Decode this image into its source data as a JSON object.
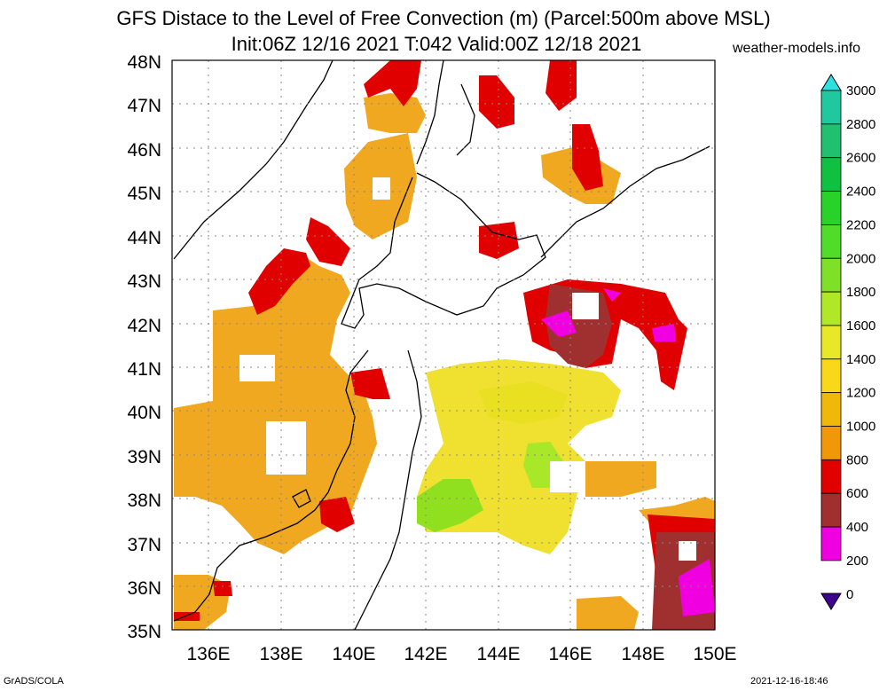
{
  "title_line1": "GFS Distace to the Level of Free Convection (m) (Parcel:500m above MSL)",
  "title_line2": "Init:06Z 12/16 2021 T:042 Valid:00Z 12/18 2021",
  "site": "weather-models.info",
  "footer_left": "GrADS/COLA",
  "footer_right": "2021-12-16-18:46",
  "lat_labels": [
    "48N",
    "47N",
    "46N",
    "45N",
    "44N",
    "43N",
    "42N",
    "41N",
    "40N",
    "39N",
    "38N",
    "37N",
    "36N",
    "35N"
  ],
  "lon_labels": [
    "136E",
    "138E",
    "140E",
    "142E",
    "144E",
    "146E",
    "148E",
    "150E"
  ],
  "colorbar": {
    "levels": [
      "3000",
      "2800",
      "2600",
      "2400",
      "2200",
      "2000",
      "1800",
      "1600",
      "1400",
      "1200",
      "1000",
      "800",
      "600",
      "400",
      "200",
      "0"
    ],
    "colors": [
      "#30e0e0",
      "#20c8a0",
      "#20c070",
      "#10c040",
      "#28d228",
      "#50dc28",
      "#80e028",
      "#b0e828",
      "#e8e828",
      "#f8d818",
      "#f0b808",
      "#f09808",
      "#e00000",
      "#a03030",
      "#f000e0",
      "#400090"
    ]
  },
  "colors": {
    "orange": "#f0a820",
    "red": "#e00000",
    "brown": "#a03030",
    "magenta": "#f000e0",
    "yellow": "#f0e030",
    "green": "#90e020"
  }
}
